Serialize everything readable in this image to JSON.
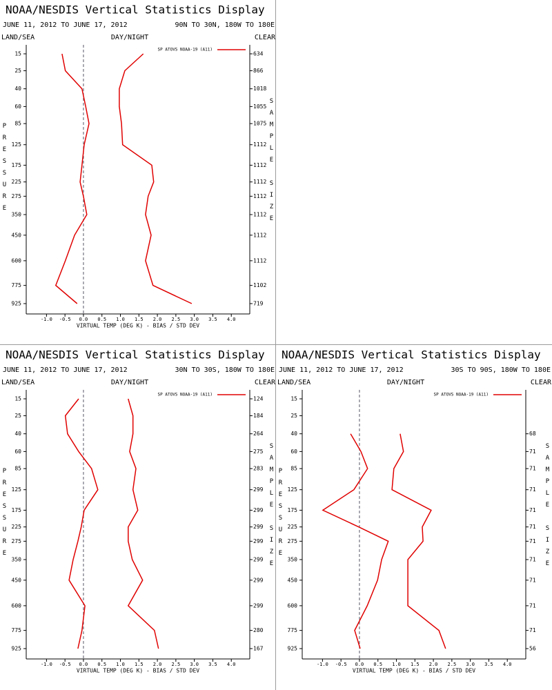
{
  "chart_data": [
    {
      "type": "line",
      "title": "NOAA/NESDIS Vertical Statistics Display",
      "subtitle": "JUNE 11, 2012 TO JUNE 17, 2012",
      "region": "90N TO 30N, 180W TO 180E",
      "land_sea": "LAND/SEA",
      "day_night": "DAY/NIGHT",
      "clear": "CLEAR",
      "y_label": "PRESSURE",
      "y2_label": "SAMPLE SIZE",
      "x_label": "VIRTUAL TEMP (DEG K) - BIAS / STD DEV",
      "y": [
        15,
        25,
        40,
        60,
        85,
        125,
        175,
        225,
        275,
        350,
        450,
        600,
        775,
        925
      ],
      "ylim": [
        15,
        925
      ],
      "sample_size": [
        634,
        866,
        1018,
        1055,
        1075,
        1112,
        1112,
        1112,
        1112,
        1112,
        1112,
        1112,
        1102,
        719
      ],
      "series": [
        {
          "name": "SP ATOVS NOAA-19 (A11)",
          "color": "#e00000",
          "values": [
            -0.58,
            -0.49,
            -0.04,
            0.06,
            0.15,
            0.02,
            -0.04,
            -0.09,
            0.0,
            0.09,
            -0.24,
            -0.49,
            -0.75,
            -0.17
          ]
        },
        {
          "color": "#e00000",
          "values": [
            1.62,
            1.12,
            0.97,
            0.97,
            1.03,
            1.06,
            1.85,
            1.9,
            1.75,
            1.68,
            1.83,
            1.68,
            1.88,
            2.93
          ]
        }
      ],
      "xlim": [
        -1.5,
        4.5
      ],
      "xticks": [
        {
          "value": -1,
          "label": "-1.0"
        },
        {
          "value": -0.5,
          "label": "-0.5"
        },
        {
          "value": 0,
          "label": "0.0"
        },
        {
          "value": 0.5,
          "label": "0.5"
        },
        {
          "value": 1,
          "label": "1.0"
        },
        {
          "value": 1.5,
          "label": "1.5"
        },
        {
          "value": 2,
          "label": "2.0"
        },
        {
          "value": 2.5,
          "label": "2.5"
        },
        {
          "value": 3,
          "label": "3.0"
        },
        {
          "value": 3.5,
          "label": "3.5"
        },
        {
          "value": 4,
          "label": "4.0"
        }
      ],
      "zero_line": true
    },
    {
      "type": "line",
      "title": "NOAA/NESDIS Vertical Statistics Display",
      "subtitle": "JUNE 11, 2012 TO JUNE 17, 2012",
      "region": "30N TO 30S, 180W TO 180E",
      "land_sea": "LAND/SEA",
      "day_night": "DAY/NIGHT",
      "clear": "CLEAR",
      "y_label": "PRESSURE",
      "y2_label": "SAMPLE SIZE",
      "x_label": "VIRTUAL TEMP (DEG K) - BIAS / STD DEV",
      "y": [
        15,
        25,
        40,
        60,
        85,
        125,
        175,
        225,
        275,
        350,
        450,
        600,
        775,
        925
      ],
      "ylim": [
        15,
        925
      ],
      "sample_size": [
        124,
        184,
        264,
        275,
        283,
        299,
        299,
        299,
        299,
        299,
        299,
        299,
        280,
        167
      ],
      "series": [
        {
          "name": "SP ATOVS NOAA-19 (A11)",
          "color": "#e00000",
          "values": [
            -0.13,
            -0.49,
            -0.43,
            -0.13,
            0.22,
            0.39,
            0.02,
            -0.06,
            -0.15,
            -0.28,
            -0.39,
            0.04,
            -0.04,
            -0.15
          ]
        },
        {
          "color": "#e00000",
          "values": [
            1.21,
            1.34,
            1.34,
            1.25,
            1.42,
            1.34,
            1.47,
            1.21,
            1.21,
            1.32,
            1.6,
            1.21,
            1.92,
            2.03
          ]
        }
      ],
      "xlim": [
        -1.5,
        4.5
      ],
      "xticks": [
        {
          "value": -1,
          "label": "-1.0"
        },
        {
          "value": -0.5,
          "label": "-0.5"
        },
        {
          "value": 0,
          "label": "0.0"
        },
        {
          "value": 0.5,
          "label": "0.5"
        },
        {
          "value": 1,
          "label": "1.0"
        },
        {
          "value": 1.5,
          "label": "1.5"
        },
        {
          "value": 2,
          "label": "2.0"
        },
        {
          "value": 2.5,
          "label": "2.5"
        },
        {
          "value": 3,
          "label": "3.0"
        },
        {
          "value": 3.5,
          "label": "3.5"
        },
        {
          "value": 4,
          "label": "4.0"
        }
      ],
      "zero_line": true
    },
    {
      "type": "line",
      "title": "NOAA/NESDIS Vertical Statistics Display",
      "subtitle": "JUNE 11, 2012 TO JUNE 17, 2012",
      "region": "30S TO 90S, 180W TO 180E",
      "land_sea": "LAND/SEA",
      "day_night": "DAY/NIGHT",
      "clear": "CLEAR",
      "y_label": "PRESSURE",
      "y2_label": "SAMPLE SIZE",
      "x_label": "VIRTUAL TEMP (DEG K) - BIAS / STD DEV",
      "y": [
        15,
        25,
        40,
        60,
        85,
        125,
        175,
        225,
        275,
        350,
        450,
        600,
        775,
        925
      ],
      "ylim": [
        15,
        925
      ],
      "sample_size": [
        null,
        null,
        68,
        71,
        71,
        71,
        71,
        71,
        71,
        71,
        71,
        71,
        71,
        56
      ],
      "series": [
        {
          "name": "SP ATOVS NOAA-19 (A11)",
          "color": "#e00000",
          "values": [
            null,
            null,
            -0.24,
            0.04,
            0.22,
            -0.15,
            -0.99,
            -0.02,
            0.78,
            0.6,
            0.49,
            0.21,
            -0.13,
            0.02
          ]
        },
        {
          "color": "#e00000",
          "values": [
            null,
            null,
            1.1,
            1.19,
            0.93,
            0.88,
            1.94,
            1.7,
            1.72,
            1.31,
            1.31,
            1.31,
            2.15,
            2.33
          ]
        }
      ],
      "xlim": [
        -1.5,
        4.5
      ],
      "xticks": [
        {
          "value": -1,
          "label": "-1.0"
        },
        {
          "value": -0.5,
          "label": "-0.5"
        },
        {
          "value": 0,
          "label": "0.0"
        },
        {
          "value": 0.5,
          "label": "0.5"
        },
        {
          "value": 1,
          "label": "1.0"
        },
        {
          "value": 1.5,
          "label": "1.5"
        },
        {
          "value": 2,
          "label": "2.0"
        },
        {
          "value": 2.5,
          "label": "2.5"
        },
        {
          "value": 3,
          "label": "3.0"
        },
        {
          "value": 3.5,
          "label": "3.5"
        },
        {
          "value": 4,
          "label": "4.0"
        }
      ],
      "zero_line": true
    }
  ]
}
